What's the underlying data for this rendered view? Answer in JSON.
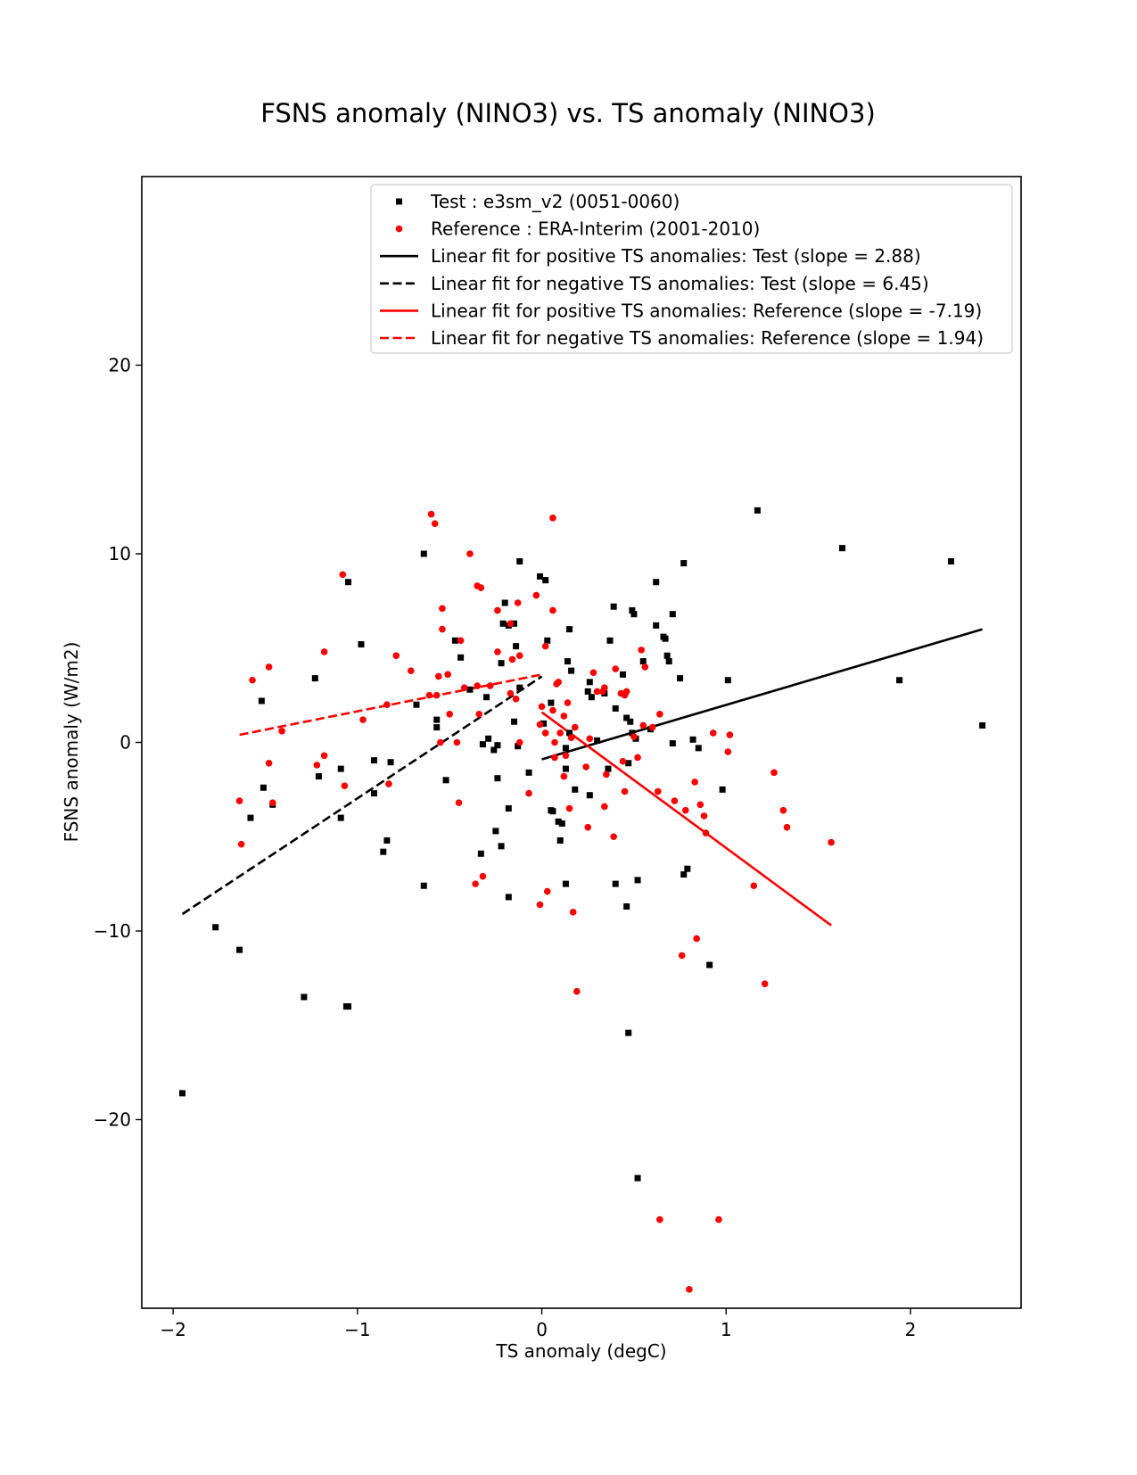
{
  "chart_data": {
    "type": "scatter",
    "title": "FSNS anomaly (NINO3) vs. TS anomaly (NINO3)",
    "xlabel": "TS anomaly (degC)",
    "ylabel": "FSNS anomaly (W/m2)",
    "xlim": [
      -2.17,
      2.6
    ],
    "ylim": [
      -30,
      30
    ],
    "xticks": [
      -2,
      -1,
      0,
      1,
      2
    ],
    "yticks": [
      -20,
      -10,
      0,
      10,
      20
    ],
    "xtick_labels": [
      "−2",
      "−1",
      "0",
      "1",
      "2"
    ],
    "ytick_labels": [
      "−20",
      "−10",
      "0",
      "10",
      "20"
    ],
    "grid": false,
    "legend_placement": "top-right",
    "series": [
      {
        "name": "Test : e3sm_v2 (0051-0060)",
        "kind": "scatter",
        "marker": "square",
        "color": "#000000",
        "points": [
          [
            -1.95,
            -18.6
          ],
          [
            -1.77,
            -9.8
          ],
          [
            -1.64,
            -11.0
          ],
          [
            -1.58,
            -4.0
          ],
          [
            -1.52,
            2.2
          ],
          [
            -1.51,
            -2.4
          ],
          [
            -1.46,
            -3.3
          ],
          [
            -1.29,
            -13.5
          ],
          [
            -1.23,
            3.4
          ],
          [
            -1.21,
            -1.8
          ],
          [
            -1.09,
            -1.4
          ],
          [
            -1.09,
            -4.0
          ],
          [
            -1.06,
            -14.0
          ],
          [
            -1.05,
            -14.0
          ],
          [
            -1.05,
            8.5
          ],
          [
            -0.98,
            5.2
          ],
          [
            -0.91,
            -0.95
          ],
          [
            -0.91,
            -2.7
          ],
          [
            -0.86,
            -5.8
          ],
          [
            -0.84,
            -5.2
          ],
          [
            -0.82,
            -1.05
          ],
          [
            -0.68,
            2.0
          ],
          [
            -0.64,
            10.0
          ],
          [
            -0.64,
            -7.6
          ],
          [
            -0.57,
            1.2
          ],
          [
            -0.57,
            0.8
          ],
          [
            -0.52,
            -2.0
          ],
          [
            -0.47,
            5.4
          ],
          [
            -0.44,
            4.5
          ],
          [
            -0.39,
            2.8
          ],
          [
            -0.33,
            -5.9
          ],
          [
            -0.32,
            -0.1
          ],
          [
            -0.3,
            2.4
          ],
          [
            -0.29,
            0.2
          ],
          [
            -0.26,
            -0.4
          ],
          [
            -0.25,
            -4.7
          ],
          [
            -0.24,
            -0.15
          ],
          [
            -0.24,
            -1.9
          ],
          [
            -0.22,
            -5.5
          ],
          [
            -0.22,
            4.2
          ],
          [
            -0.21,
            6.3
          ],
          [
            -0.2,
            7.4
          ],
          [
            -0.18,
            6.2
          ],
          [
            -0.18,
            -3.5
          ],
          [
            -0.18,
            -8.2
          ],
          [
            -0.15,
            6.3
          ],
          [
            -0.15,
            1.1
          ],
          [
            -0.14,
            5.1
          ],
          [
            -0.13,
            -0.2
          ],
          [
            -0.12,
            9.6
          ],
          [
            -0.12,
            2.9
          ],
          [
            -0.07,
            -1.6
          ],
          [
            -0.01,
            8.8
          ],
          [
            0.01,
            1.0
          ],
          [
            0.02,
            8.6
          ],
          [
            0.03,
            5.4
          ],
          [
            0.05,
            2.1
          ],
          [
            0.05,
            -3.6
          ],
          [
            0.06,
            -3.65
          ],
          [
            0.09,
            -4.2
          ],
          [
            0.1,
            -5.2
          ],
          [
            0.11,
            -4.3
          ],
          [
            0.13,
            -0.3
          ],
          [
            0.13,
            -1.4
          ],
          [
            0.13,
            -7.5
          ],
          [
            0.14,
            4.3
          ],
          [
            0.15,
            0.5
          ],
          [
            0.15,
            6.0
          ],
          [
            0.16,
            3.8
          ],
          [
            0.18,
            -2.5
          ],
          [
            0.25,
            2.7
          ],
          [
            0.26,
            3.2
          ],
          [
            0.26,
            -2.8
          ],
          [
            0.27,
            2.4
          ],
          [
            0.3,
            0.1
          ],
          [
            0.34,
            2.6
          ],
          [
            0.36,
            -1.4
          ],
          [
            0.37,
            5.4
          ],
          [
            0.39,
            7.2
          ],
          [
            0.4,
            1.8
          ],
          [
            0.4,
            -7.5
          ],
          [
            0.44,
            3.6
          ],
          [
            0.46,
            1.3
          ],
          [
            0.46,
            -8.7
          ],
          [
            0.47,
            -1.1
          ],
          [
            0.47,
            -15.4
          ],
          [
            0.48,
            1.1
          ],
          [
            0.49,
            0.5
          ],
          [
            0.49,
            7.0
          ],
          [
            0.5,
            6.8
          ],
          [
            0.51,
            0.2
          ],
          [
            0.52,
            -7.3
          ],
          [
            0.52,
            -23.1
          ],
          [
            0.55,
            4.3
          ],
          [
            0.59,
            0.7
          ],
          [
            0.62,
            6.2
          ],
          [
            0.62,
            8.5
          ],
          [
            0.66,
            5.6
          ],
          [
            0.67,
            5.5
          ],
          [
            0.68,
            4.6
          ],
          [
            0.69,
            4.3
          ],
          [
            0.71,
            6.8
          ],
          [
            0.71,
            -0.05
          ],
          [
            0.75,
            3.4
          ],
          [
            0.77,
            -7.0
          ],
          [
            0.77,
            9.5
          ],
          [
            0.79,
            -6.7
          ],
          [
            0.82,
            0.15
          ],
          [
            0.85,
            -0.3
          ],
          [
            0.91,
            -11.8
          ],
          [
            0.98,
            -2.5
          ],
          [
            1.01,
            3.3
          ],
          [
            1.17,
            12.3
          ],
          [
            1.63,
            10.3
          ],
          [
            1.94,
            3.3
          ],
          [
            2.22,
            9.6
          ],
          [
            2.39,
            0.9
          ]
        ]
      },
      {
        "name": "Reference : ERA-Interim (2001-2010)",
        "kind": "scatter",
        "marker": "circle",
        "color": "#ff0000",
        "points": [
          [
            -1.64,
            -3.1
          ],
          [
            -1.63,
            -5.4
          ],
          [
            -1.57,
            3.3
          ],
          [
            -1.48,
            4.0
          ],
          [
            -1.48,
            -1.1
          ],
          [
            -1.46,
            -3.2
          ],
          [
            -1.41,
            0.6
          ],
          [
            -1.22,
            -1.2
          ],
          [
            -1.18,
            4.8
          ],
          [
            -1.18,
            -0.7
          ],
          [
            -1.08,
            8.9
          ],
          [
            -1.07,
            -2.3
          ],
          [
            -0.97,
            1.2
          ],
          [
            -0.84,
            2.0
          ],
          [
            -0.83,
            -2.2
          ],
          [
            -0.79,
            4.6
          ],
          [
            -0.71,
            3.8
          ],
          [
            -0.61,
            2.5
          ],
          [
            -0.6,
            12.1
          ],
          [
            -0.58,
            11.6
          ],
          [
            -0.57,
            2.5
          ],
          [
            -0.56,
            3.5
          ],
          [
            -0.55,
            0.0
          ],
          [
            -0.54,
            7.1
          ],
          [
            -0.54,
            6.0
          ],
          [
            -0.51,
            3.6
          ],
          [
            -0.5,
            1.5
          ],
          [
            -0.46,
            0.0
          ],
          [
            -0.45,
            -3.2
          ],
          [
            -0.44,
            5.4
          ],
          [
            -0.42,
            2.9
          ],
          [
            -0.39,
            10.0
          ],
          [
            -0.36,
            -7.5
          ],
          [
            -0.35,
            3.0
          ],
          [
            -0.35,
            8.3
          ],
          [
            -0.34,
            1.5
          ],
          [
            -0.33,
            8.2
          ],
          [
            -0.32,
            -7.1
          ],
          [
            -0.28,
            3.0
          ],
          [
            -0.24,
            4.8
          ],
          [
            -0.24,
            7.0
          ],
          [
            -0.17,
            2.6
          ],
          [
            -0.17,
            6.3
          ],
          [
            -0.16,
            4.4
          ],
          [
            -0.14,
            2.3
          ],
          [
            -0.13,
            7.4
          ],
          [
            -0.12,
            4.6
          ],
          [
            -0.12,
            0.0
          ],
          [
            -0.07,
            -2.7
          ],
          [
            -0.03,
            7.8
          ],
          [
            -0.01,
            0.95
          ],
          [
            -0.01,
            -8.6
          ],
          [
            0.0,
            1.9
          ],
          [
            0.02,
            5.1
          ],
          [
            0.02,
            0.5
          ],
          [
            0.03,
            -7.9
          ],
          [
            0.06,
            11.9
          ],
          [
            0.06,
            1.7
          ],
          [
            0.06,
            7.0
          ],
          [
            0.07,
            0.0
          ],
          [
            0.07,
            -0.8
          ],
          [
            0.08,
            3.1
          ],
          [
            0.09,
            3.2
          ],
          [
            0.1,
            0.5
          ],
          [
            0.12,
            1.4
          ],
          [
            0.12,
            -1.8
          ],
          [
            0.13,
            -0.7
          ],
          [
            0.14,
            2.1
          ],
          [
            0.15,
            -3.5
          ],
          [
            0.16,
            0.25
          ],
          [
            0.17,
            -9.0
          ],
          [
            0.18,
            0.8
          ],
          [
            0.19,
            -13.2
          ],
          [
            0.24,
            -1.3
          ],
          [
            0.25,
            -4.5
          ],
          [
            0.26,
            0.2
          ],
          [
            0.28,
            3.7
          ],
          [
            0.3,
            2.7
          ],
          [
            0.33,
            2.7
          ],
          [
            0.34,
            2.9
          ],
          [
            0.34,
            -3.4
          ],
          [
            0.35,
            -1.7
          ],
          [
            0.39,
            -5.0
          ],
          [
            0.4,
            3.9
          ],
          [
            0.43,
            2.6
          ],
          [
            0.44,
            -1.0
          ],
          [
            0.45,
            2.5
          ],
          [
            0.45,
            -2.6
          ],
          [
            0.46,
            2.7
          ],
          [
            0.5,
            0.3
          ],
          [
            0.52,
            -0.8
          ],
          [
            0.54,
            4.9
          ],
          [
            0.55,
            0.9
          ],
          [
            0.56,
            4.0
          ],
          [
            0.6,
            0.8
          ],
          [
            0.63,
            -2.6
          ],
          [
            0.64,
            1.5
          ],
          [
            0.64,
            -25.3
          ],
          [
            0.72,
            -3.1
          ],
          [
            0.76,
            -11.3
          ],
          [
            0.78,
            -3.6
          ],
          [
            0.8,
            -29.0
          ],
          [
            0.83,
            -2.1
          ],
          [
            0.84,
            -10.4
          ],
          [
            0.86,
            -3.3
          ],
          [
            0.88,
            -3.9
          ],
          [
            0.89,
            -4.8
          ],
          [
            0.93,
            0.5
          ],
          [
            0.96,
            -25.3
          ],
          [
            1.01,
            -0.5
          ],
          [
            1.02,
            0.4
          ],
          [
            1.15,
            -7.6
          ],
          [
            1.21,
            -12.8
          ],
          [
            1.26,
            -1.6
          ],
          [
            1.31,
            -3.6
          ],
          [
            1.33,
            -4.5
          ],
          [
            1.57,
            -5.3
          ]
        ]
      },
      {
        "name": "Linear fit for positive TS anomalies: Test (slope = 2.88)",
        "kind": "line",
        "dash": "solid",
        "color": "#000000",
        "points": [
          [
            0.0,
            -0.9
          ],
          [
            2.39,
            6.0
          ]
        ]
      },
      {
        "name": "Linear fit for negative TS anomalies: Test (slope = 6.45)",
        "kind": "line",
        "dash": "dashed",
        "color": "#000000",
        "points": [
          [
            -1.95,
            -9.1
          ],
          [
            0.0,
            3.5
          ]
        ]
      },
      {
        "name": "Linear fit for positive TS anomalies: Reference (slope = -7.19)",
        "kind": "line",
        "dash": "solid",
        "color": "#ff0000",
        "points": [
          [
            0.0,
            1.6
          ],
          [
            1.57,
            -9.7
          ]
        ]
      },
      {
        "name": "Linear fit for negative TS anomalies: Reference (slope = 1.94)",
        "kind": "line",
        "dash": "dashed",
        "color": "#ff0000",
        "points": [
          [
            -1.64,
            0.4
          ],
          [
            0.0,
            3.6
          ]
        ]
      }
    ]
  }
}
